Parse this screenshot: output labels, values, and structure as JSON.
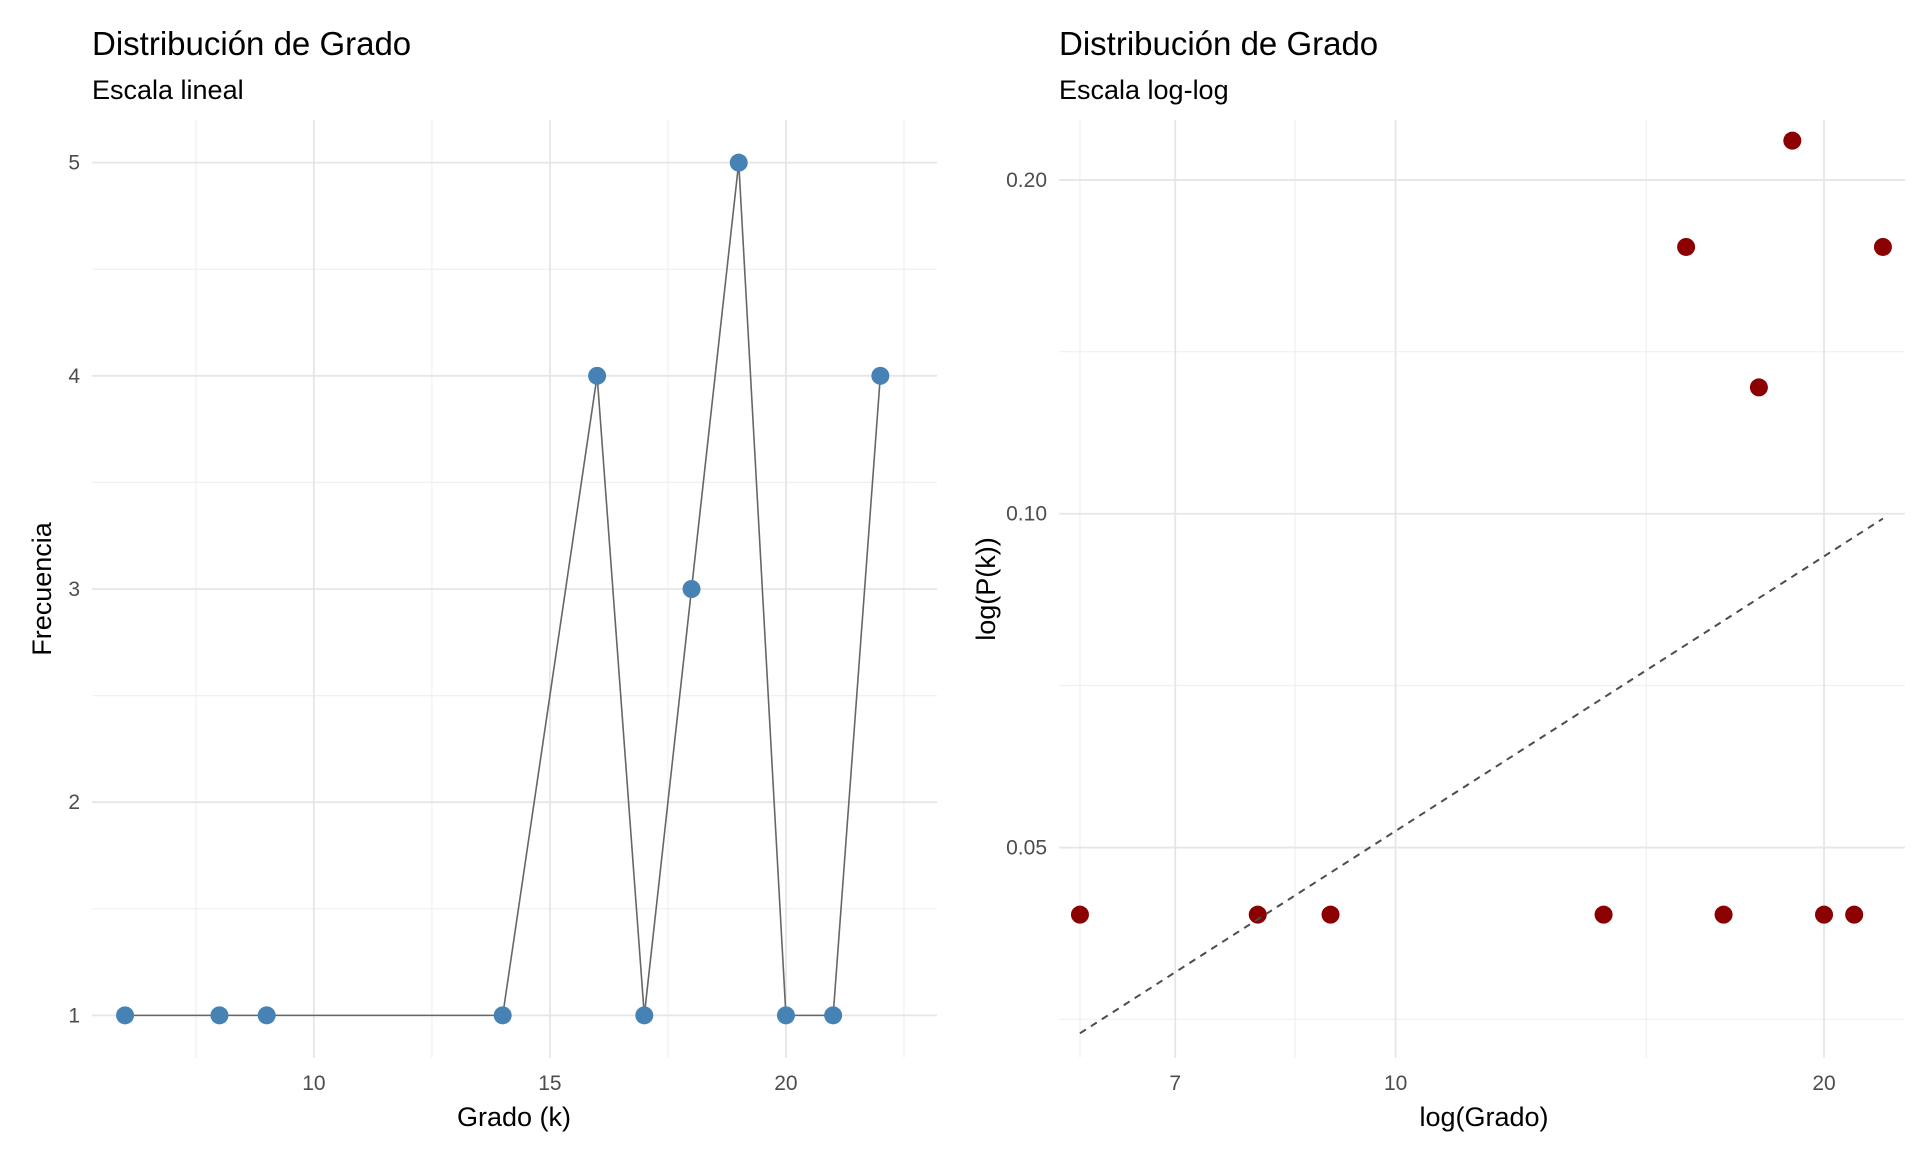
{
  "chart_data": [
    {
      "type": "line",
      "title": "Distribución de Grado",
      "subtitle": "Escala lineal",
      "xlabel": "Grado (k)",
      "ylabel": "Frecuencia",
      "x_scale": "linear",
      "y_scale": "linear",
      "xlim": [
        5.3,
        23.2
      ],
      "ylim": [
        0.8,
        5.2
      ],
      "x_ticks": [
        "10",
        "15",
        "20"
      ],
      "y_ticks": [
        "1",
        "2",
        "3",
        "4",
        "5"
      ],
      "grid": true,
      "point_color": "#4682b4",
      "line_color": "#666666",
      "series": [
        {
          "x": [
            6,
            8,
            9,
            14,
            16,
            17,
            18,
            19,
            20,
            21,
            22
          ],
          "y": [
            1,
            1,
            1,
            1,
            4,
            1,
            3,
            5,
            1,
            1,
            4
          ]
        }
      ]
    },
    {
      "type": "scatter",
      "title": "Distribución de Grado",
      "subtitle": "Escala log-log",
      "xlabel": "log(Grado)",
      "ylabel": "log(P(k))",
      "x_scale": "log",
      "y_scale": "log",
      "xlim": [
        5.8,
        22.8
      ],
      "ylim": [
        0.0323,
        0.2265
      ],
      "x_ticks": [
        "7",
        "10",
        "20"
      ],
      "y_ticks": [
        "0.05",
        "0.10",
        "0.20"
      ],
      "grid": true,
      "point_color": "#8b0000",
      "fit_line_color": "#4d4d4d",
      "series": [
        {
          "x": [
            6,
            8,
            9,
            14,
            16,
            17,
            18,
            19,
            20,
            21,
            22
          ],
          "y": [
            0.0435,
            0.0435,
            0.0435,
            0.0435,
            0.174,
            0.0435,
            0.13,
            0.217,
            0.0435,
            0.0435,
            0.174
          ]
        }
      ],
      "fit_line": {
        "x": [
          6,
          22
        ],
        "y": [
          0.034,
          0.099
        ],
        "style": "dashed"
      }
    }
  ]
}
